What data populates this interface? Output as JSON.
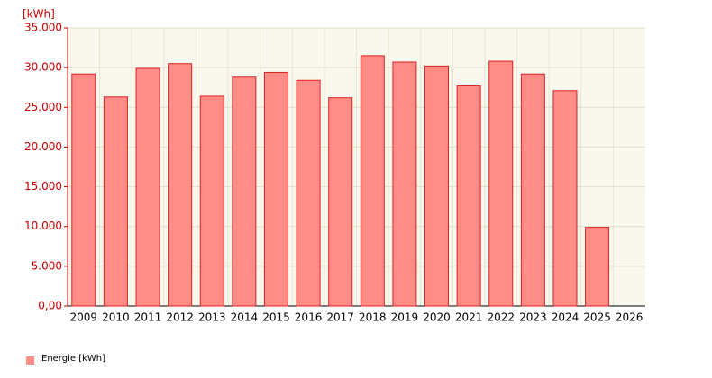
{
  "chart_data": {
    "type": "bar",
    "y_label": "[kWh]",
    "categories": [
      "2009",
      "2010",
      "2011",
      "2012",
      "2013",
      "2014",
      "2015",
      "2016",
      "2017",
      "2018",
      "2019",
      "2020",
      "2021",
      "2022",
      "2023",
      "2024",
      "2025",
      "2026"
    ],
    "series": [
      {
        "name": "Energie [kWh]",
        "color": "#ff8c87",
        "values": [
          29200,
          26300,
          29900,
          30500,
          26400,
          28800,
          29400,
          28400,
          26200,
          31500,
          30700,
          30200,
          27700,
          30800,
          29200,
          27100,
          9900,
          null
        ]
      }
    ],
    "ylim": [
      0,
      35000
    ],
    "yticks": [
      {
        "value": 0,
        "label": "0,00"
      },
      {
        "value": 5000,
        "label": "5.000"
      },
      {
        "value": 10000,
        "label": "10.000"
      },
      {
        "value": 15000,
        "label": "15.000"
      },
      {
        "value": 20000,
        "label": "20.000"
      },
      {
        "value": 25000,
        "label": "25.000"
      },
      {
        "value": 30000,
        "label": "30.000"
      },
      {
        "value": 35000,
        "label": "35.000"
      }
    ],
    "grid": true
  }
}
